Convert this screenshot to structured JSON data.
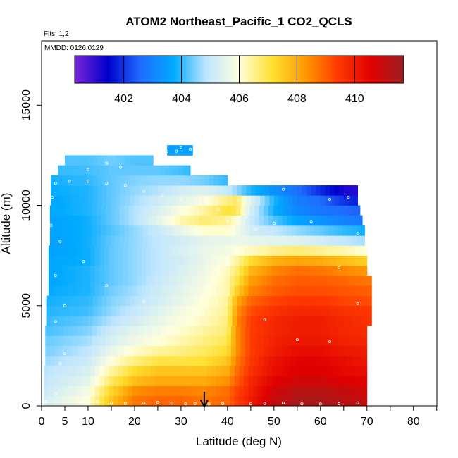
{
  "chart_data": {
    "type": "heatmap",
    "title": "ATOM2 Northeast_Pacific_1 CO2_QCLS",
    "annotations": [
      "Flts: 1,2",
      "MMDD: 0126,0129"
    ],
    "xlabel": "Latitude (deg N)",
    "ylabel": "Altitude (m)",
    "xlim": [
      0,
      85
    ],
    "ylim": [
      0,
      17500
    ],
    "x_ticks": [
      0,
      5,
      10,
      20,
      30,
      40,
      50,
      60,
      70,
      80
    ],
    "y_ticks": [
      0,
      5000,
      10000,
      15000
    ],
    "color_scale": {
      "min": 400.3,
      "max": 411.7,
      "ticks": [
        402,
        404,
        406,
        408,
        410
      ],
      "colors": [
        "#7b24d6",
        "#0000cc",
        "#1f6bff",
        "#00aaff",
        "#bfe6ff",
        "#ffffdd",
        "#ffe030",
        "#ff9a00",
        "#ff3a00",
        "#e00000",
        "#9a2020"
      ]
    },
    "arrow_marker_latitude": 35,
    "altitude_bands_m": [
      250,
      750,
      1250,
      1750,
      2250,
      2750,
      3250,
      3750,
      4250,
      4750,
      5250,
      5750,
      6250,
      6750,
      7250,
      7750,
      8250,
      8750,
      9250,
      9750,
      10250,
      10750,
      11250,
      11750,
      12250,
      12750
    ],
    "band_lat_extent": [
      [
        0.5,
        70
      ],
      [
        0.5,
        70
      ],
      [
        0.5,
        70
      ],
      [
        0.5,
        70
      ],
      [
        0.8,
        70
      ],
      [
        0.8,
        70
      ],
      [
        0.8,
        70
      ],
      [
        0.8,
        70
      ],
      [
        1,
        71
      ],
      [
        1,
        71
      ],
      [
        1,
        71
      ],
      [
        1.5,
        71
      ],
      [
        1.5,
        71
      ],
      [
        1.5,
        70
      ],
      [
        1.5,
        70
      ],
      [
        1.5,
        70
      ],
      [
        1.8,
        69.5
      ],
      [
        1.8,
        69.5
      ],
      [
        1.8,
        69
      ],
      [
        1.8,
        68.5
      ],
      [
        2,
        68
      ],
      [
        2,
        68
      ],
      [
        2,
        40
      ],
      [
        3.5,
        32
      ],
      [
        5,
        24
      ],
      [
        27,
        32.5
      ]
    ],
    "lat_knots": [
      0,
      10,
      15,
      20,
      25,
      30,
      35,
      40,
      42,
      45,
      50,
      55,
      60,
      65,
      70
    ],
    "co2_ppm": [
      [
        405.2,
        406.0,
        407.6,
        408.7,
        408.9,
        408.9,
        408.7,
        408.9,
        409.4,
        410.0,
        411.0,
        411.4,
        411.4,
        411.2,
        411.0
      ],
      [
        405.0,
        405.8,
        407.3,
        408.4,
        408.6,
        408.6,
        408.5,
        408.8,
        409.3,
        409.9,
        410.8,
        411.2,
        411.2,
        411.0,
        410.8
      ],
      [
        404.9,
        405.5,
        406.8,
        407.7,
        408.0,
        408.0,
        408.0,
        408.4,
        409.0,
        409.8,
        410.5,
        410.8,
        410.8,
        410.6,
        410.5
      ],
      [
        404.8,
        405.3,
        406.4,
        407.2,
        407.6,
        407.6,
        407.6,
        408.0,
        408.8,
        409.6,
        410.3,
        410.6,
        410.6,
        410.4,
        410.3
      ],
      [
        404.6,
        405.1,
        406.0,
        406.6,
        407.0,
        407.0,
        407.1,
        407.6,
        408.6,
        409.5,
        410.2,
        410.5,
        410.5,
        410.3,
        410.1
      ],
      [
        404.4,
        404.9,
        405.6,
        406.1,
        406.4,
        406.6,
        406.8,
        407.2,
        408.4,
        409.4,
        410.0,
        410.3,
        410.3,
        410.1,
        410.0
      ],
      [
        404.3,
        404.7,
        405.3,
        405.7,
        406.0,
        406.3,
        406.6,
        406.9,
        408.4,
        409.4,
        409.9,
        410.1,
        410.1,
        409.9,
        409.8
      ],
      [
        404.1,
        404.5,
        405.1,
        405.5,
        405.8,
        406.1,
        406.4,
        406.7,
        408.4,
        409.4,
        409.8,
        410.0,
        410.0,
        409.8,
        409.7
      ],
      [
        404.0,
        404.3,
        404.8,
        405.2,
        405.6,
        405.9,
        406.2,
        406.6,
        408.5,
        409.4,
        409.8,
        410.0,
        410.0,
        409.8,
        409.6
      ],
      [
        403.9,
        404.1,
        404.6,
        405.0,
        405.4,
        405.8,
        406.1,
        406.5,
        408.3,
        409.2,
        409.6,
        409.8,
        409.8,
        409.6,
        409.5
      ],
      [
        403.8,
        404.0,
        404.5,
        404.8,
        405.2,
        405.6,
        406.0,
        406.4,
        408.0,
        408.9,
        409.3,
        409.5,
        409.5,
        409.3,
        409.2
      ],
      [
        403.7,
        403.9,
        404.4,
        404.7,
        405.1,
        405.5,
        405.9,
        406.3,
        407.4,
        408.5,
        409.0,
        409.2,
        409.2,
        409.1,
        409.0
      ],
      [
        403.6,
        403.9,
        404.3,
        404.6,
        405.0,
        405.4,
        405.8,
        406.3,
        407.0,
        408.2,
        408.8,
        409.0,
        409.0,
        408.9,
        408.7
      ],
      [
        403.6,
        403.9,
        404.3,
        404.6,
        404.9,
        405.3,
        405.7,
        406.2,
        406.7,
        407.8,
        408.5,
        408.8,
        408.7,
        408.5,
        408.3
      ],
      [
        403.6,
        403.8,
        404.3,
        404.6,
        404.9,
        405.2,
        405.6,
        406.0,
        406.4,
        407.2,
        407.9,
        408.1,
        408.0,
        407.7,
        407.4
      ],
      [
        403.5,
        403.8,
        404.3,
        404.6,
        404.9,
        405.3,
        405.6,
        405.8,
        406.0,
        406.2,
        406.5,
        406.7,
        406.5,
        406.3,
        406.0
      ],
      [
        403.5,
        403.8,
        404.3,
        404.6,
        404.9,
        405.2,
        405.5,
        405.6,
        405.7,
        405.6,
        405.5,
        405.4,
        405.2,
        404.9,
        404.7
      ],
      [
        403.5,
        403.8,
        404.2,
        404.6,
        405.0,
        405.6,
        406.1,
        406.1,
        405.8,
        405.2,
        404.9,
        404.6,
        404.3,
        404.0,
        403.8
      ],
      [
        403.5,
        403.8,
        404.3,
        404.8,
        405.5,
        406.3,
        406.7,
        406.5,
        406.0,
        405.0,
        404.2,
        403.6,
        403.3,
        403.0,
        402.8
      ],
      [
        403.6,
        403.9,
        404.3,
        404.8,
        405.3,
        405.9,
        406.4,
        407.1,
        406.9,
        405.2,
        403.8,
        403.1,
        402.8,
        402.6,
        402.4
      ],
      [
        403.6,
        403.9,
        404.3,
        404.7,
        405.1,
        405.5,
        405.9,
        406.6,
        406.8,
        405.4,
        403.9,
        402.9,
        402.6,
        402.0,
        401.6
      ],
      [
        403.7,
        403.9,
        404.3,
        404.6,
        404.8,
        405.2,
        405.4,
        405.0,
        404.6,
        403.9,
        403.3,
        402.7,
        401.9,
        401.2,
        401.0
      ],
      [
        403.8,
        404.0,
        404.3,
        404.5,
        404.6,
        404.6,
        404.4,
        404.0,
        404.0,
        404.0,
        404.0,
        404.0,
        404.0,
        404.0,
        404.0
      ],
      [
        404.0,
        404.1,
        404.3,
        404.3,
        404.3,
        404.1,
        403.8,
        403.6,
        403.6,
        403.6,
        403.6,
        403.6,
        403.6,
        403.6,
        403.6
      ],
      [
        404.2,
        404.2,
        404.4,
        404.2,
        404.2,
        404.2,
        404.2,
        404.2,
        404.2,
        404.2,
        404.2,
        404.2,
        404.2,
        404.2,
        404.2
      ],
      [
        403.5,
        403.5,
        403.5,
        403.5,
        403.5,
        403.5,
        403.5,
        403.5,
        403.5,
        403.5,
        403.5,
        403.5,
        403.5,
        403.5,
        403.5
      ]
    ],
    "sample_points": [
      [
        1,
        200
      ],
      [
        3,
        600
      ],
      [
        4,
        2100
      ],
      [
        5,
        2600
      ],
      [
        9,
        100
      ],
      [
        12,
        200
      ],
      [
        15,
        150
      ],
      [
        18,
        120
      ],
      [
        22,
        150
      ],
      [
        25,
        180
      ],
      [
        28,
        130
      ],
      [
        31,
        100
      ],
      [
        33,
        120
      ],
      [
        36,
        90
      ],
      [
        39,
        110
      ],
      [
        45,
        100
      ],
      [
        48,
        120
      ],
      [
        52,
        150
      ],
      [
        56,
        100
      ],
      [
        60,
        90
      ],
      [
        64,
        110
      ],
      [
        68,
        150
      ],
      [
        3,
        4200
      ],
      [
        5,
        5000
      ],
      [
        3,
        6500
      ],
      [
        4,
        8200
      ],
      [
        9,
        7200
      ],
      [
        14,
        6000
      ],
      [
        22,
        5200
      ],
      [
        26,
        3600
      ],
      [
        48,
        4300
      ],
      [
        55,
        3300
      ],
      [
        62,
        3200
      ],
      [
        68,
        5100
      ],
      [
        64,
        6900
      ],
      [
        68,
        8600
      ],
      [
        2,
        9000
      ],
      [
        2.3,
        10400
      ],
      [
        3,
        11100
      ],
      [
        6,
        11200
      ],
      [
        10,
        11200
      ],
      [
        14,
        11100
      ],
      [
        18,
        11000
      ],
      [
        22,
        10700
      ],
      [
        26,
        10500
      ],
      [
        30,
        10300
      ],
      [
        34,
        10100
      ],
      [
        30,
        12900
      ],
      [
        32,
        12800
      ],
      [
        29,
        12700
      ],
      [
        27,
        12700
      ],
      [
        33,
        12200
      ],
      [
        17,
        11900
      ],
      [
        14,
        12100
      ],
      [
        10,
        11800
      ],
      [
        38,
        9800
      ],
      [
        40,
        9200
      ],
      [
        44,
        9400
      ],
      [
        46,
        8800
      ],
      [
        50,
        9100
      ],
      [
        58,
        9200
      ],
      [
        62,
        10300
      ],
      [
        66,
        10400
      ],
      [
        52,
        10800
      ]
    ]
  }
}
